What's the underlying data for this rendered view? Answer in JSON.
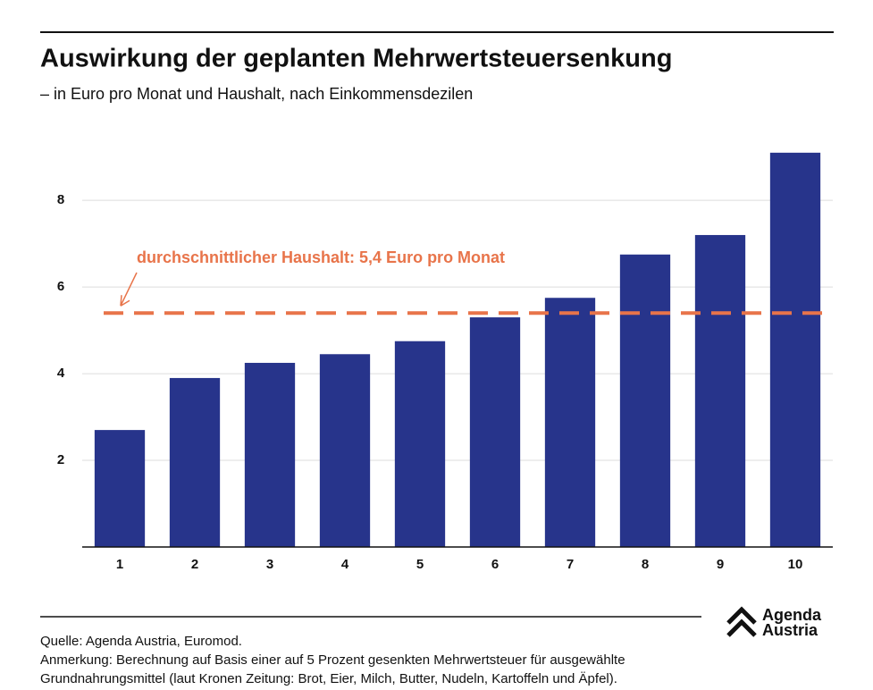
{
  "chart_data": {
    "type": "bar",
    "title": "Auswirkung der geplanten Mehrwertsteuersenkung",
    "subtitle": "– in Euro pro Monat und Haushalt, nach Einkommensdezilen",
    "categories": [
      "1",
      "2",
      "3",
      "4",
      "5",
      "6",
      "7",
      "8",
      "9",
      "10"
    ],
    "values": [
      2.7,
      3.9,
      4.25,
      4.45,
      4.75,
      5.3,
      5.75,
      6.75,
      7.2,
      9.1
    ],
    "color": "#27348b",
    "ylim": [
      0,
      9.2
    ],
    "yticks": [
      2,
      4,
      6,
      8
    ],
    "grid": true,
    "reference_line": {
      "value": 5.4,
      "label": "durchschnittlicher Haushalt: 5,4 Euro pro Monat",
      "color": "#e8744a"
    },
    "notes": [
      "Quelle: Agenda Austria, Euromod.",
      "Anmerkung: Berechnung auf Basis einer auf 5 Prozent gesenkten Mehrwertsteuer für ausgewählte",
      "Grundnahrungsmittel (laut Kronen Zeitung: Brot, Eier, Milch, Butter, Nudeln, Kartoffeln und Äpfel)."
    ],
    "logo": [
      "Agenda",
      "Austria"
    ]
  }
}
